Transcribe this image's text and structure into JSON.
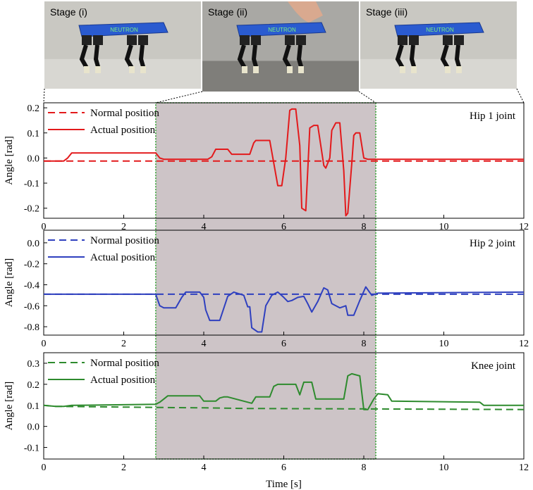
{
  "chart_data": [
    {
      "type": "line",
      "title": "Hip 1 joint",
      "xlabel": "",
      "ylabel": "Angle [rad]",
      "xlim": [
        0,
        12
      ],
      "ylim": [
        -0.24,
        0.22
      ],
      "xticks": [
        0,
        2,
        4,
        6,
        8,
        10,
        12
      ],
      "yticks": [
        0.2,
        0.1,
        0.0,
        -0.1,
        -0.2
      ],
      "ytick_labels": [
        "0.2",
        "0.1",
        "0.0",
        "-0.1",
        "-0.2"
      ],
      "color": "#e31a1c",
      "series": [
        {
          "name": "Normal position",
          "style": "dashed",
          "x": [
            0,
            12
          ],
          "y": [
            -0.012,
            -0.012
          ]
        },
        {
          "name": "Actual position",
          "style": "solid",
          "x": [
            0,
            0.5,
            0.6,
            0.7,
            2.8,
            2.9,
            3.0,
            4.1,
            4.2,
            4.3,
            4.6,
            4.7,
            4.8,
            5.15,
            5.25,
            5.3,
            5.65,
            5.75,
            5.85,
            5.95,
            6.05,
            6.15,
            6.2,
            6.3,
            6.4,
            6.45,
            6.55,
            6.6,
            6.65,
            6.75,
            6.85,
            7.0,
            7.05,
            7.15,
            7.2,
            7.3,
            7.4,
            7.5,
            7.55,
            7.6,
            7.7,
            7.75,
            7.8,
            7.9,
            8.0,
            8.1,
            8.2,
            8.3,
            12
          ],
          "y": [
            -0.012,
            -0.012,
            0.0,
            0.02,
            0.02,
            0.0,
            -0.005,
            -0.005,
            0.005,
            0.035,
            0.035,
            0.015,
            0.015,
            0.015,
            0.06,
            0.07,
            0.07,
            -0.02,
            -0.11,
            -0.11,
            0.0,
            0.19,
            0.195,
            0.195,
            0.05,
            -0.2,
            -0.21,
            -0.05,
            0.12,
            0.13,
            0.13,
            -0.03,
            -0.04,
            0.0,
            0.11,
            0.14,
            0.14,
            -0.05,
            -0.23,
            -0.22,
            -0.02,
            0.09,
            0.1,
            0.1,
            0.0,
            -0.005,
            -0.005,
            -0.005,
            -0.005
          ]
        }
      ]
    },
    {
      "type": "line",
      "title": "Hip 2 joint",
      "xlabel": "",
      "ylabel": "Angle [rad]",
      "xlim": [
        0,
        12
      ],
      "ylim": [
        -0.88,
        0.12
      ],
      "xticks": [
        0,
        2,
        4,
        6,
        8,
        10,
        12
      ],
      "yticks": [
        0.0,
        -0.2,
        -0.4,
        -0.6,
        -0.8
      ],
      "ytick_labels": [
        "0.0",
        "-0.2",
        "-0.4",
        "-0.6",
        "-0.8"
      ],
      "color": "#2f40bf",
      "series": [
        {
          "name": "Normal position",
          "style": "dashed",
          "x": [
            0,
            12
          ],
          "y": [
            -0.49,
            -0.49
          ]
        },
        {
          "name": "Actual position",
          "style": "solid",
          "x": [
            0,
            2.8,
            2.9,
            3.0,
            3.3,
            3.45,
            3.55,
            3.9,
            4.0,
            4.05,
            4.15,
            4.3,
            4.4,
            4.6,
            4.75,
            5.0,
            5.1,
            5.15,
            5.2,
            5.35,
            5.45,
            5.55,
            5.7,
            5.85,
            6.0,
            6.1,
            6.2,
            6.35,
            6.5,
            6.6,
            6.7,
            6.85,
            7.0,
            7.1,
            7.2,
            7.4,
            7.55,
            7.6,
            7.75,
            7.9,
            8.05,
            8.2,
            8.35,
            12
          ],
          "y": [
            -0.49,
            -0.49,
            -0.6,
            -0.62,
            -0.62,
            -0.52,
            -0.47,
            -0.47,
            -0.52,
            -0.64,
            -0.74,
            -0.74,
            -0.74,
            -0.51,
            -0.47,
            -0.5,
            -0.61,
            -0.61,
            -0.81,
            -0.85,
            -0.85,
            -0.6,
            -0.5,
            -0.47,
            -0.52,
            -0.56,
            -0.55,
            -0.52,
            -0.51,
            -0.58,
            -0.66,
            -0.56,
            -0.43,
            -0.45,
            -0.58,
            -0.62,
            -0.6,
            -0.69,
            -0.69,
            -0.55,
            -0.42,
            -0.5,
            -0.48,
            -0.47
          ]
        }
      ]
    },
    {
      "type": "line",
      "title": "Knee joint",
      "xlabel": "Time [s]",
      "ylabel": "Angle [rad]",
      "xlim": [
        0,
        12
      ],
      "ylim": [
        -0.155,
        0.35
      ],
      "xticks": [
        0,
        2,
        4,
        6,
        8,
        10,
        12
      ],
      "yticks": [
        0.3,
        0.2,
        0.1,
        0.0,
        -0.1
      ],
      "ytick_labels": [
        "0.3",
        "0.2",
        "0.1",
        "0.0",
        "-0.1"
      ],
      "color": "#2e8b2e",
      "series": [
        {
          "name": "Normal position",
          "style": "dashed",
          "x": [
            0,
            0.3,
            2.8,
            4.0,
            5.0,
            8.0,
            12
          ],
          "y": [
            0.1,
            0.095,
            0.09,
            0.088,
            0.085,
            0.083,
            0.08
          ]
        },
        {
          "name": "Actual position",
          "style": "solid",
          "x": [
            0,
            0.3,
            0.5,
            0.7,
            2.8,
            2.9,
            3.0,
            3.1,
            3.2,
            3.9,
            4.0,
            4.3,
            4.4,
            4.5,
            4.6,
            5.2,
            5.3,
            5.4,
            5.5,
            5.65,
            5.75,
            5.85,
            6.3,
            6.4,
            6.5,
            6.7,
            6.8,
            6.95,
            7.5,
            7.6,
            7.7,
            7.9,
            8.0,
            8.1,
            8.25,
            8.35,
            8.6,
            8.7,
            10.9,
            11.0,
            12
          ],
          "y": [
            0.1,
            0.095,
            0.095,
            0.1,
            0.105,
            0.115,
            0.13,
            0.145,
            0.145,
            0.145,
            0.12,
            0.12,
            0.135,
            0.14,
            0.14,
            0.11,
            0.14,
            0.14,
            0.14,
            0.14,
            0.19,
            0.2,
            0.2,
            0.15,
            0.21,
            0.21,
            0.13,
            0.13,
            0.13,
            0.24,
            0.25,
            0.24,
            0.08,
            0.08,
            0.13,
            0.155,
            0.15,
            0.12,
            0.115,
            0.1,
            0.1
          ]
        }
      ]
    }
  ],
  "legend": {
    "normal": "Normal position",
    "actual": "Actual position"
  },
  "stages": [
    {
      "label": "Stage (i)"
    },
    {
      "label": "Stage (ii)"
    },
    {
      "label": "Stage (iii)"
    }
  ],
  "highlight": {
    "x_range": [
      2.8,
      8.3
    ],
    "fill": "#cdc4c7",
    "border": "#2ca02c"
  },
  "xlabel": "Time [s]",
  "robot_logo": "NEUTRON"
}
